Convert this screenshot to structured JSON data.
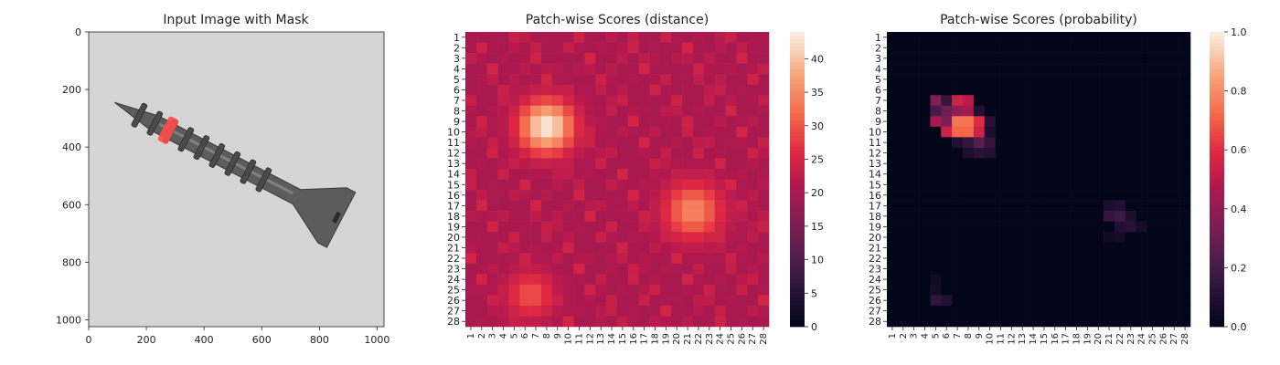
{
  "chart_data": [
    {
      "type": "image",
      "title": "Input Image with Mask",
      "xlim": [
        0,
        1024
      ],
      "ylim": [
        1024,
        0
      ],
      "xticks": [
        0,
        200,
        400,
        600,
        800,
        1000
      ],
      "yticks": [
        0,
        200,
        400,
        600,
        800,
        1000
      ],
      "image_description": "Grayscale photo of a metal screw lying diagonally on a light gray background, with a red segmentation mask over one thread near the tip.",
      "screw": {
        "tip": [
          90,
          245
        ],
        "head_center": [
          860,
          645
        ],
        "mask_center": [
          282,
          320
        ]
      },
      "colors": {
        "background": "#d9d9d9",
        "screw": "#5c5c5c",
        "mask": "#ff4d4d"
      }
    },
    {
      "type": "heatmap",
      "title": "Patch-wise Scores (distance)",
      "colormap": "rocket",
      "colorbar_range": [
        0,
        44
      ],
      "colorbar_ticks": [
        0,
        5,
        10,
        15,
        20,
        25,
        30,
        35,
        40
      ],
      "rows": 28,
      "cols": 28,
      "xtick_labels": [
        "1",
        "2",
        "3",
        "4",
        "5",
        "6",
        "7",
        "8",
        "9",
        "10",
        "11",
        "12",
        "13",
        "14",
        "15",
        "16",
        "17",
        "18",
        "19",
        "20",
        "21",
        "22",
        "23",
        "24",
        "25",
        "26",
        "27",
        "28"
      ],
      "ytick_labels": [
        "1",
        "2",
        "3",
        "4",
        "5",
        "6",
        "7",
        "8",
        "9",
        "10",
        "11",
        "12",
        "13",
        "14",
        "15",
        "16",
        "17",
        "18",
        "19",
        "20",
        "21",
        "22",
        "23",
        "24",
        "25",
        "26",
        "27",
        "28"
      ],
      "hotspots": [
        {
          "row": 9.5,
          "col": 8,
          "peak": 44,
          "sigma": 1.8
        },
        {
          "row": 17.5,
          "col": 21.5,
          "peak": 35,
          "sigma": 1.9
        },
        {
          "row": 25.5,
          "col": 6.5,
          "peak": 30,
          "sigma": 1.6
        }
      ],
      "baseline": 20
    },
    {
      "type": "heatmap",
      "title": "Patch-wise Scores (probability)",
      "colormap": "rocket",
      "colorbar_range": [
        0,
        1
      ],
      "colorbar_ticks": [
        "0.0",
        "0.2",
        "0.4",
        "0.6",
        "0.8",
        "1.0"
      ],
      "rows": 28,
      "cols": 28,
      "xtick_labels": [
        "1",
        "2",
        "3",
        "4",
        "5",
        "6",
        "7",
        "8",
        "9",
        "10",
        "11",
        "12",
        "13",
        "14",
        "15",
        "16",
        "17",
        "18",
        "19",
        "20",
        "21",
        "22",
        "23",
        "24",
        "25",
        "26",
        "27",
        "28"
      ],
      "ytick_labels": [
        "1",
        "2",
        "3",
        "4",
        "5",
        "6",
        "7",
        "8",
        "9",
        "10",
        "11",
        "12",
        "13",
        "14",
        "15",
        "16",
        "17",
        "18",
        "19",
        "20",
        "21",
        "22",
        "23",
        "24",
        "25",
        "26",
        "27",
        "28"
      ],
      "cells": [
        {
          "row": 7,
          "col": 5,
          "value": 0.35
        },
        {
          "row": 7,
          "col": 6,
          "value": 0.15
        },
        {
          "row": 7,
          "col": 7,
          "value": 0.55
        },
        {
          "row": 7,
          "col": 8,
          "value": 0.5
        },
        {
          "row": 8,
          "col": 5,
          "value": 0.2
        },
        {
          "row": 8,
          "col": 6,
          "value": 0.3
        },
        {
          "row": 8,
          "col": 7,
          "value": 0.4
        },
        {
          "row": 8,
          "col": 8,
          "value": 0.45
        },
        {
          "row": 8,
          "col": 9,
          "value": 0.1
        },
        {
          "row": 9,
          "col": 5,
          "value": 0.45
        },
        {
          "row": 9,
          "col": 6,
          "value": 0.35
        },
        {
          "row": 9,
          "col": 7,
          "value": 0.75
        },
        {
          "row": 9,
          "col": 8,
          "value": 0.75
        },
        {
          "row": 9,
          "col": 9,
          "value": 0.6
        },
        {
          "row": 9,
          "col": 10,
          "value": 0.12
        },
        {
          "row": 10,
          "col": 6,
          "value": 0.55
        },
        {
          "row": 10,
          "col": 7,
          "value": 0.72
        },
        {
          "row": 10,
          "col": 8,
          "value": 0.72
        },
        {
          "row": 10,
          "col": 9,
          "value": 0.55
        },
        {
          "row": 10,
          "col": 10,
          "value": 0.08
        },
        {
          "row": 11,
          "col": 7,
          "value": 0.1
        },
        {
          "row": 11,
          "col": 8,
          "value": 0.15
        },
        {
          "row": 11,
          "col": 9,
          "value": 0.25
        },
        {
          "row": 11,
          "col": 10,
          "value": 0.15
        },
        {
          "row": 12,
          "col": 8,
          "value": 0.08
        },
        {
          "row": 12,
          "col": 9,
          "value": 0.12
        },
        {
          "row": 12,
          "col": 10,
          "value": 0.1
        },
        {
          "row": 17,
          "col": 21,
          "value": 0.08
        },
        {
          "row": 17,
          "col": 22,
          "value": 0.1
        },
        {
          "row": 18,
          "col": 21,
          "value": 0.15
        },
        {
          "row": 18,
          "col": 22,
          "value": 0.18
        },
        {
          "row": 18,
          "col": 23,
          "value": 0.08
        },
        {
          "row": 19,
          "col": 22,
          "value": 0.1
        },
        {
          "row": 19,
          "col": 23,
          "value": 0.12
        },
        {
          "row": 19,
          "col": 24,
          "value": 0.06
        },
        {
          "row": 20,
          "col": 21,
          "value": 0.05
        },
        {
          "row": 20,
          "col": 22,
          "value": 0.06
        },
        {
          "row": 25,
          "col": 5,
          "value": 0.06
        },
        {
          "row": 26,
          "col": 5,
          "value": 0.14
        },
        {
          "row": 26,
          "col": 6,
          "value": 0.1
        },
        {
          "row": 24,
          "col": 5,
          "value": 0.05
        }
      ]
    }
  ]
}
